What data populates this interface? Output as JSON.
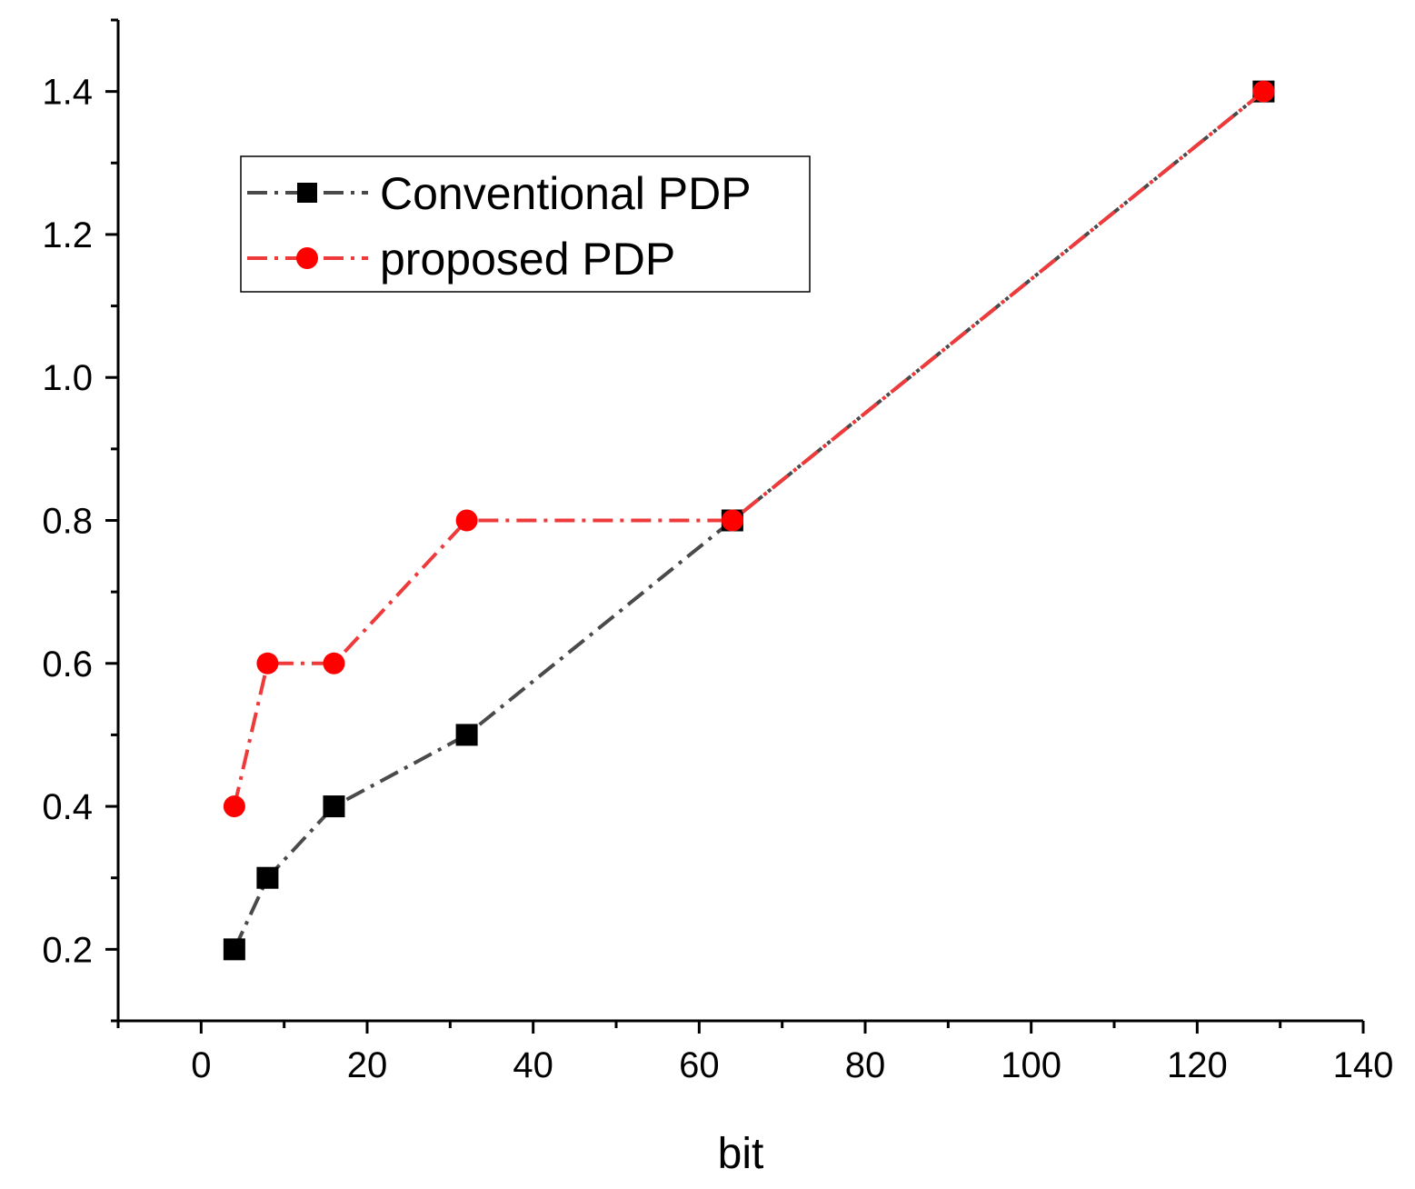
{
  "chart_data": {
    "type": "line",
    "title": "",
    "xlabel": "bit",
    "ylabel": "",
    "xlim": [
      -10,
      140
    ],
    "ylim": [
      0.1,
      1.5
    ],
    "xticks": [
      0,
      20,
      40,
      60,
      80,
      100,
      120,
      140
    ],
    "xtick_labels": [
      "0",
      "20",
      "40",
      "60",
      "80",
      "100",
      "120",
      "140"
    ],
    "yticks": [
      0.2,
      0.4,
      0.6,
      0.8,
      1.0,
      1.2,
      1.4
    ],
    "ytick_labels": [
      "0.2",
      "0.4",
      "0.6",
      "0.8",
      "1.0",
      "1.2",
      "1.4"
    ],
    "grid": false,
    "legend_position": "upper-left",
    "series": [
      {
        "name": "Conventional PDP",
        "marker": "square",
        "line_style": "dash-dot",
        "line_color": "#4a4a4a",
        "marker_color": "#000000",
        "x": [
          4,
          8,
          16,
          32,
          64,
          128
        ],
        "y": [
          0.2,
          0.3,
          0.4,
          0.5,
          0.8,
          1.4
        ]
      },
      {
        "name": "proposed PDP",
        "marker": "circle",
        "line_style": "dash-dot",
        "line_color": "#ee3a3a",
        "marker_color": "#ff0000",
        "x": [
          4,
          8,
          16,
          32,
          64,
          128
        ],
        "y": [
          0.4,
          0.6,
          0.6,
          0.8,
          0.8,
          1.4
        ]
      }
    ]
  }
}
